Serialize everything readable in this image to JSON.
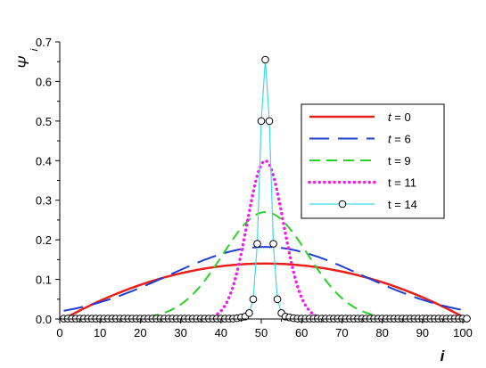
{
  "chart_data": {
    "type": "line",
    "title": "",
    "xlabel": "i",
    "ylabel": "Ψ",
    "ylabel_sub": "i",
    "xlim": [
      0,
      100
    ],
    "ylim": [
      0,
      0.7
    ],
    "x_ticks": [
      "0",
      "10",
      "20",
      "30",
      "40",
      "50",
      "60",
      "70",
      "80",
      "90",
      "100"
    ],
    "y_ticks": [
      "0.0",
      "0.1",
      "0.2",
      "0.3",
      "0.4",
      "0.5",
      "0.6",
      "0.7"
    ],
    "grid": false,
    "legend_position": "right",
    "series": [
      {
        "name": "t = 0",
        "name_var": "t",
        "name_rest": " = 0",
        "color": "#e8201a",
        "style": "solid",
        "peak": 0.14,
        "center": 51,
        "shape": "parabola",
        "x_start": 1,
        "x_end": 101
      },
      {
        "name": "t = 6",
        "name_var": "t",
        "name_rest": " = 6",
        "color": "#1f3fd6",
        "style": "dashed-long",
        "peak": 0.182,
        "center": 51,
        "shape": "gaussian",
        "sigma": 24
      },
      {
        "name": "t = 9",
        "name_var": "",
        "name_rest": "t = 9",
        "color": "#2ccf2c",
        "style": "dashed",
        "peak": 0.27,
        "center": 51,
        "shape": "gaussian",
        "sigma": 10.5
      },
      {
        "name": "t = 11",
        "name_var": "",
        "name_rest": "t = 11",
        "color": "#ee1fe8",
        "style": "dotted",
        "peak": 0.4,
        "center": 51,
        "shape": "gaussian",
        "sigma": 4.5
      },
      {
        "name": "t = 14",
        "name_var": "",
        "name_rest": "t = 14",
        "color": "#3fd9e8",
        "style": "solid-markers",
        "marker": "circle",
        "x": [
          1,
          2,
          3,
          4,
          5,
          6,
          7,
          8,
          9,
          10,
          11,
          12,
          13,
          14,
          15,
          16,
          17,
          18,
          19,
          20,
          21,
          22,
          23,
          24,
          25,
          26,
          27,
          28,
          29,
          30,
          31,
          32,
          33,
          34,
          35,
          36,
          37,
          38,
          39,
          40,
          41,
          42,
          43,
          44,
          45,
          46,
          47,
          48,
          49,
          50,
          51,
          52,
          53,
          54,
          55,
          56,
          57,
          58,
          59,
          60,
          61,
          62,
          63,
          64,
          65,
          66,
          67,
          68,
          69,
          70,
          71,
          72,
          73,
          74,
          75,
          76,
          77,
          78,
          79,
          80,
          81,
          82,
          83,
          84,
          85,
          86,
          87,
          88,
          89,
          90,
          91,
          92,
          93,
          94,
          95,
          96,
          97,
          98,
          99,
          100,
          101
        ],
        "values": [
          0.001,
          0.001,
          0.001,
          0.001,
          0.001,
          0.001,
          0.001,
          0.001,
          0.001,
          0.001,
          0.001,
          0.001,
          0.001,
          0.001,
          0.001,
          0.001,
          0.001,
          0.001,
          0.001,
          0.001,
          0.001,
          0.001,
          0.001,
          0.001,
          0.001,
          0.001,
          0.001,
          0.001,
          0.001,
          0.001,
          0.001,
          0.001,
          0.001,
          0.001,
          0.001,
          0.001,
          0.001,
          0.001,
          0.001,
          0.001,
          0.001,
          0.001,
          0.001,
          0.002,
          0.004,
          0.006,
          0.015,
          0.05,
          0.19,
          0.5,
          0.655,
          0.5,
          0.19,
          0.05,
          0.015,
          0.006,
          0.004,
          0.002,
          0.001,
          0.001,
          0.001,
          0.001,
          0.001,
          0.001,
          0.001,
          0.001,
          0.001,
          0.001,
          0.001,
          0.001,
          0.001,
          0.001,
          0.001,
          0.001,
          0.001,
          0.001,
          0.001,
          0.001,
          0.001,
          0.001,
          0.001,
          0.001,
          0.001,
          0.001,
          0.001,
          0.001,
          0.001,
          0.001,
          0.001,
          0.001,
          0.001,
          0.001,
          0.001,
          0.001,
          0.001,
          0.001,
          0.001,
          0.001,
          0.001,
          0.001,
          0.001
        ]
      }
    ]
  }
}
